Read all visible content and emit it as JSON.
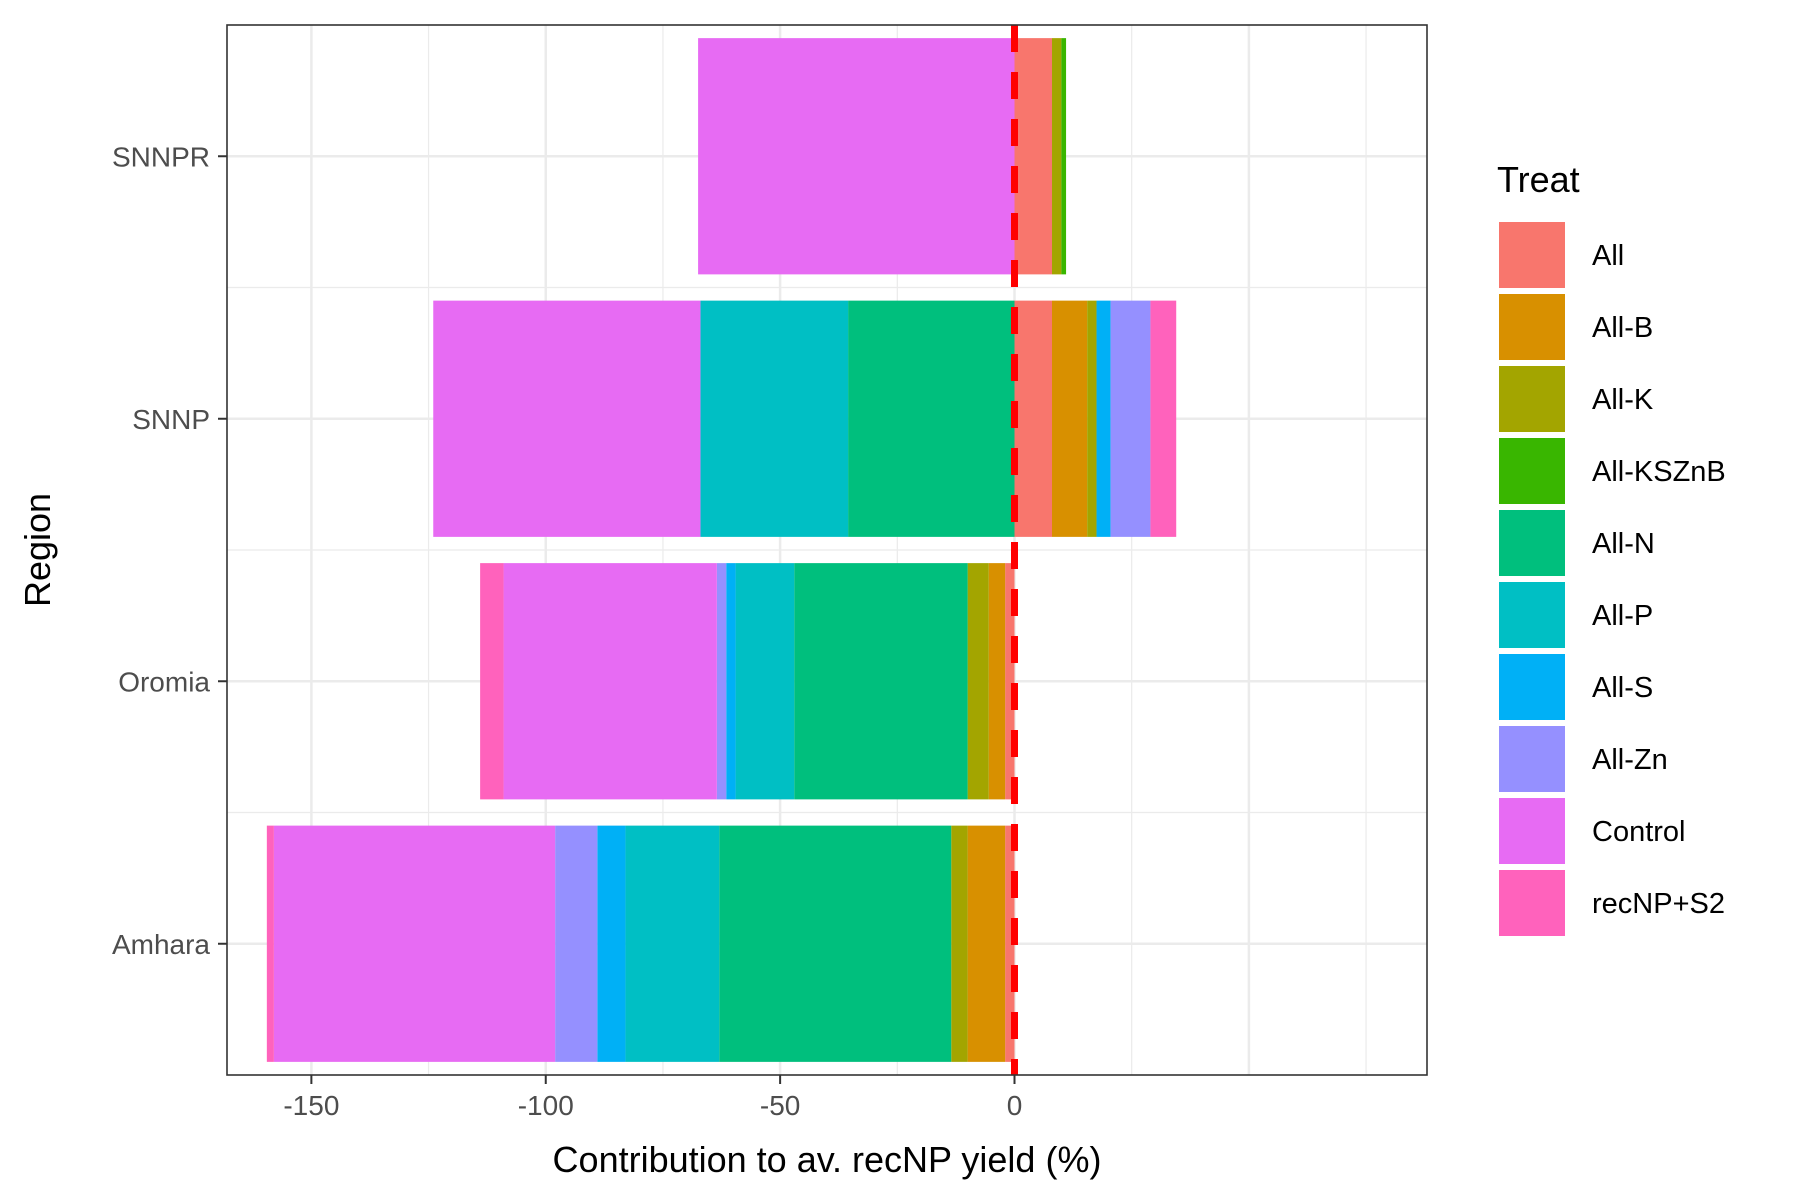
{
  "chart_data": {
    "type": "bar",
    "orientation": "horizontal",
    "stacked": "diverging",
    "title": "",
    "xlabel": "Contribution to av. recNP yield (%)",
    "ylabel": "Region",
    "xlim": [
      -168,
      88
    ],
    "x_ticks": [
      -150,
      -100,
      -50,
      0
    ],
    "x_tick_labels": [
      "-150",
      "-100",
      "-50",
      "0"
    ],
    "categories": [
      "Amhara",
      "Oromia",
      "SNNP",
      "SNNPR"
    ],
    "legend_title": "Treat",
    "legend_position": "right",
    "reference_line": {
      "x": 0,
      "color": "#ff0000",
      "style": "dashed"
    },
    "series": [
      {
        "name": "All",
        "color": "#F8766D",
        "values": [
          -2,
          -2,
          8,
          8
        ]
      },
      {
        "name": "All-B",
        "color": "#D89000",
        "values": [
          -8,
          -3.5,
          7.5,
          0
        ]
      },
      {
        "name": "All-K",
        "color": "#A3A500",
        "values": [
          -3.5,
          -4.5,
          2,
          2
        ]
      },
      {
        "name": "All-KSZnB",
        "color": "#39B600",
        "values": [
          0,
          0,
          0,
          1
        ]
      },
      {
        "name": "All-N",
        "color": "#00BF7D",
        "values": [
          -49.5,
          -37,
          -35.5,
          0
        ]
      },
      {
        "name": "All-P",
        "color": "#00BFC4",
        "values": [
          -20,
          -12.5,
          -31.5,
          0
        ]
      },
      {
        "name": "All-S",
        "color": "#00B0F6",
        "values": [
          -6,
          -2,
          3,
          0
        ]
      },
      {
        "name": "All-Zn",
        "color": "#9590FF",
        "values": [
          -9,
          -2,
          8.5,
          0
        ]
      },
      {
        "name": "Control",
        "color": "#E76BF3",
        "values": [
          -60,
          -45.5,
          -57,
          -67.5
        ]
      },
      {
        "name": "recNP+S2",
        "color": "#FF62BC",
        "values": [
          -1.5,
          -5,
          5.5,
          0
        ]
      }
    ]
  }
}
